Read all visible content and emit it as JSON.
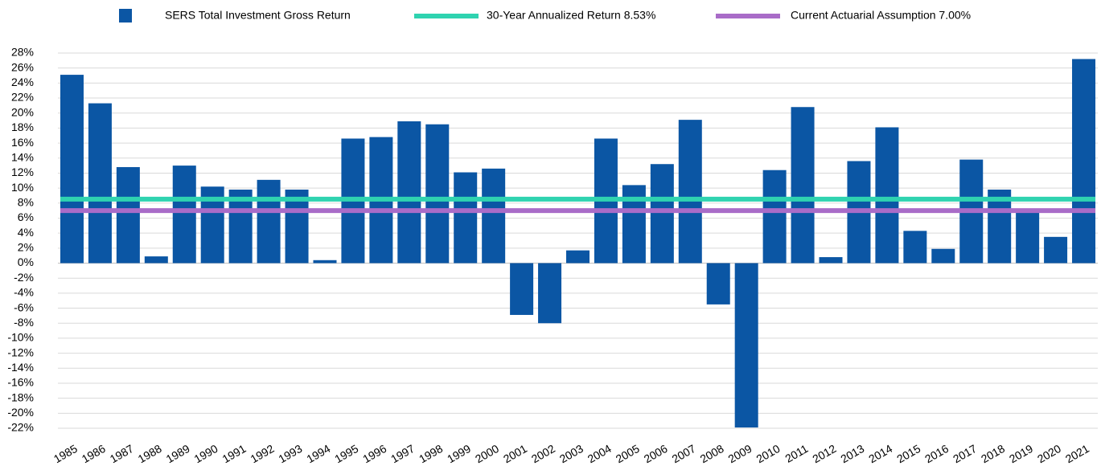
{
  "chart_data": {
    "type": "bar",
    "categories": [
      "1985",
      "1986",
      "1987",
      "1988",
      "1989",
      "1990",
      "1991",
      "1992",
      "1993",
      "1994",
      "1995",
      "1996",
      "1997",
      "1998",
      "1999",
      "2000",
      "2001",
      "2002",
      "2003",
      "2004",
      "2005",
      "2006",
      "2007",
      "2008",
      "2009",
      "2010",
      "2011",
      "2012",
      "2013",
      "2014",
      "2015",
      "2016",
      "2017",
      "2018",
      "2019",
      "2020",
      "2021"
    ],
    "series": [
      {
        "name": "SERS Total Investment Gross Return",
        "color": "#0b56a4",
        "values": [
          25.1,
          21.3,
          12.8,
          0.9,
          13.0,
          10.2,
          9.8,
          11.1,
          9.8,
          0.4,
          16.6,
          16.8,
          18.9,
          18.5,
          12.1,
          12.6,
          -6.9,
          -8.0,
          1.7,
          16.6,
          10.4,
          13.2,
          19.1,
          -5.5,
          -21.9,
          12.4,
          20.8,
          0.8,
          13.6,
          18.1,
          4.3,
          1.9,
          13.8,
          9.8,
          7.0,
          3.5,
          27.2
        ]
      }
    ],
    "reference_lines": [
      {
        "name": "30-Year Annualized Return 8.53%",
        "color": "#2fd3b0",
        "value": 8.53
      },
      {
        "name": "Current Actuarial Assumption 7.00%",
        "color": "#a96cc8",
        "value": 7.0
      }
    ],
    "ylim": [
      -22,
      28
    ],
    "yticks": [
      {
        "value": -22,
        "label": "-22%"
      },
      {
        "value": -20,
        "label": "-20%"
      },
      {
        "value": -18,
        "label": "-18%"
      },
      {
        "value": -16,
        "label": "-16%"
      },
      {
        "value": -14,
        "label": "-14%"
      },
      {
        "value": -12,
        "label": "-12%"
      },
      {
        "value": -10,
        "label": "-10%"
      },
      {
        "value": -8,
        "label": "-8%"
      },
      {
        "value": -6,
        "label": "-6%"
      },
      {
        "value": -4,
        "label": "-4%"
      },
      {
        "value": -2,
        "label": "-2%"
      },
      {
        "value": 0,
        "label": "0%"
      },
      {
        "value": 2,
        "label": "2%"
      },
      {
        "value": 4,
        "label": "4%"
      },
      {
        "value": 6,
        "label": "6%"
      },
      {
        "value": 8,
        "label": "8%"
      },
      {
        "value": 10,
        "label": "10%"
      },
      {
        "value": 12,
        "label": "12%"
      },
      {
        "value": 14,
        "label": "14%"
      },
      {
        "value": 16,
        "label": "16%"
      },
      {
        "value": 18,
        "label": "18%"
      },
      {
        "value": 20,
        "label": "20%"
      },
      {
        "value": 22,
        "label": "22%"
      },
      {
        "value": 24,
        "label": "24%"
      },
      {
        "value": 26,
        "label": "26%"
      },
      {
        "value": 28,
        "label": "28%"
      }
    ],
    "grid": true
  }
}
